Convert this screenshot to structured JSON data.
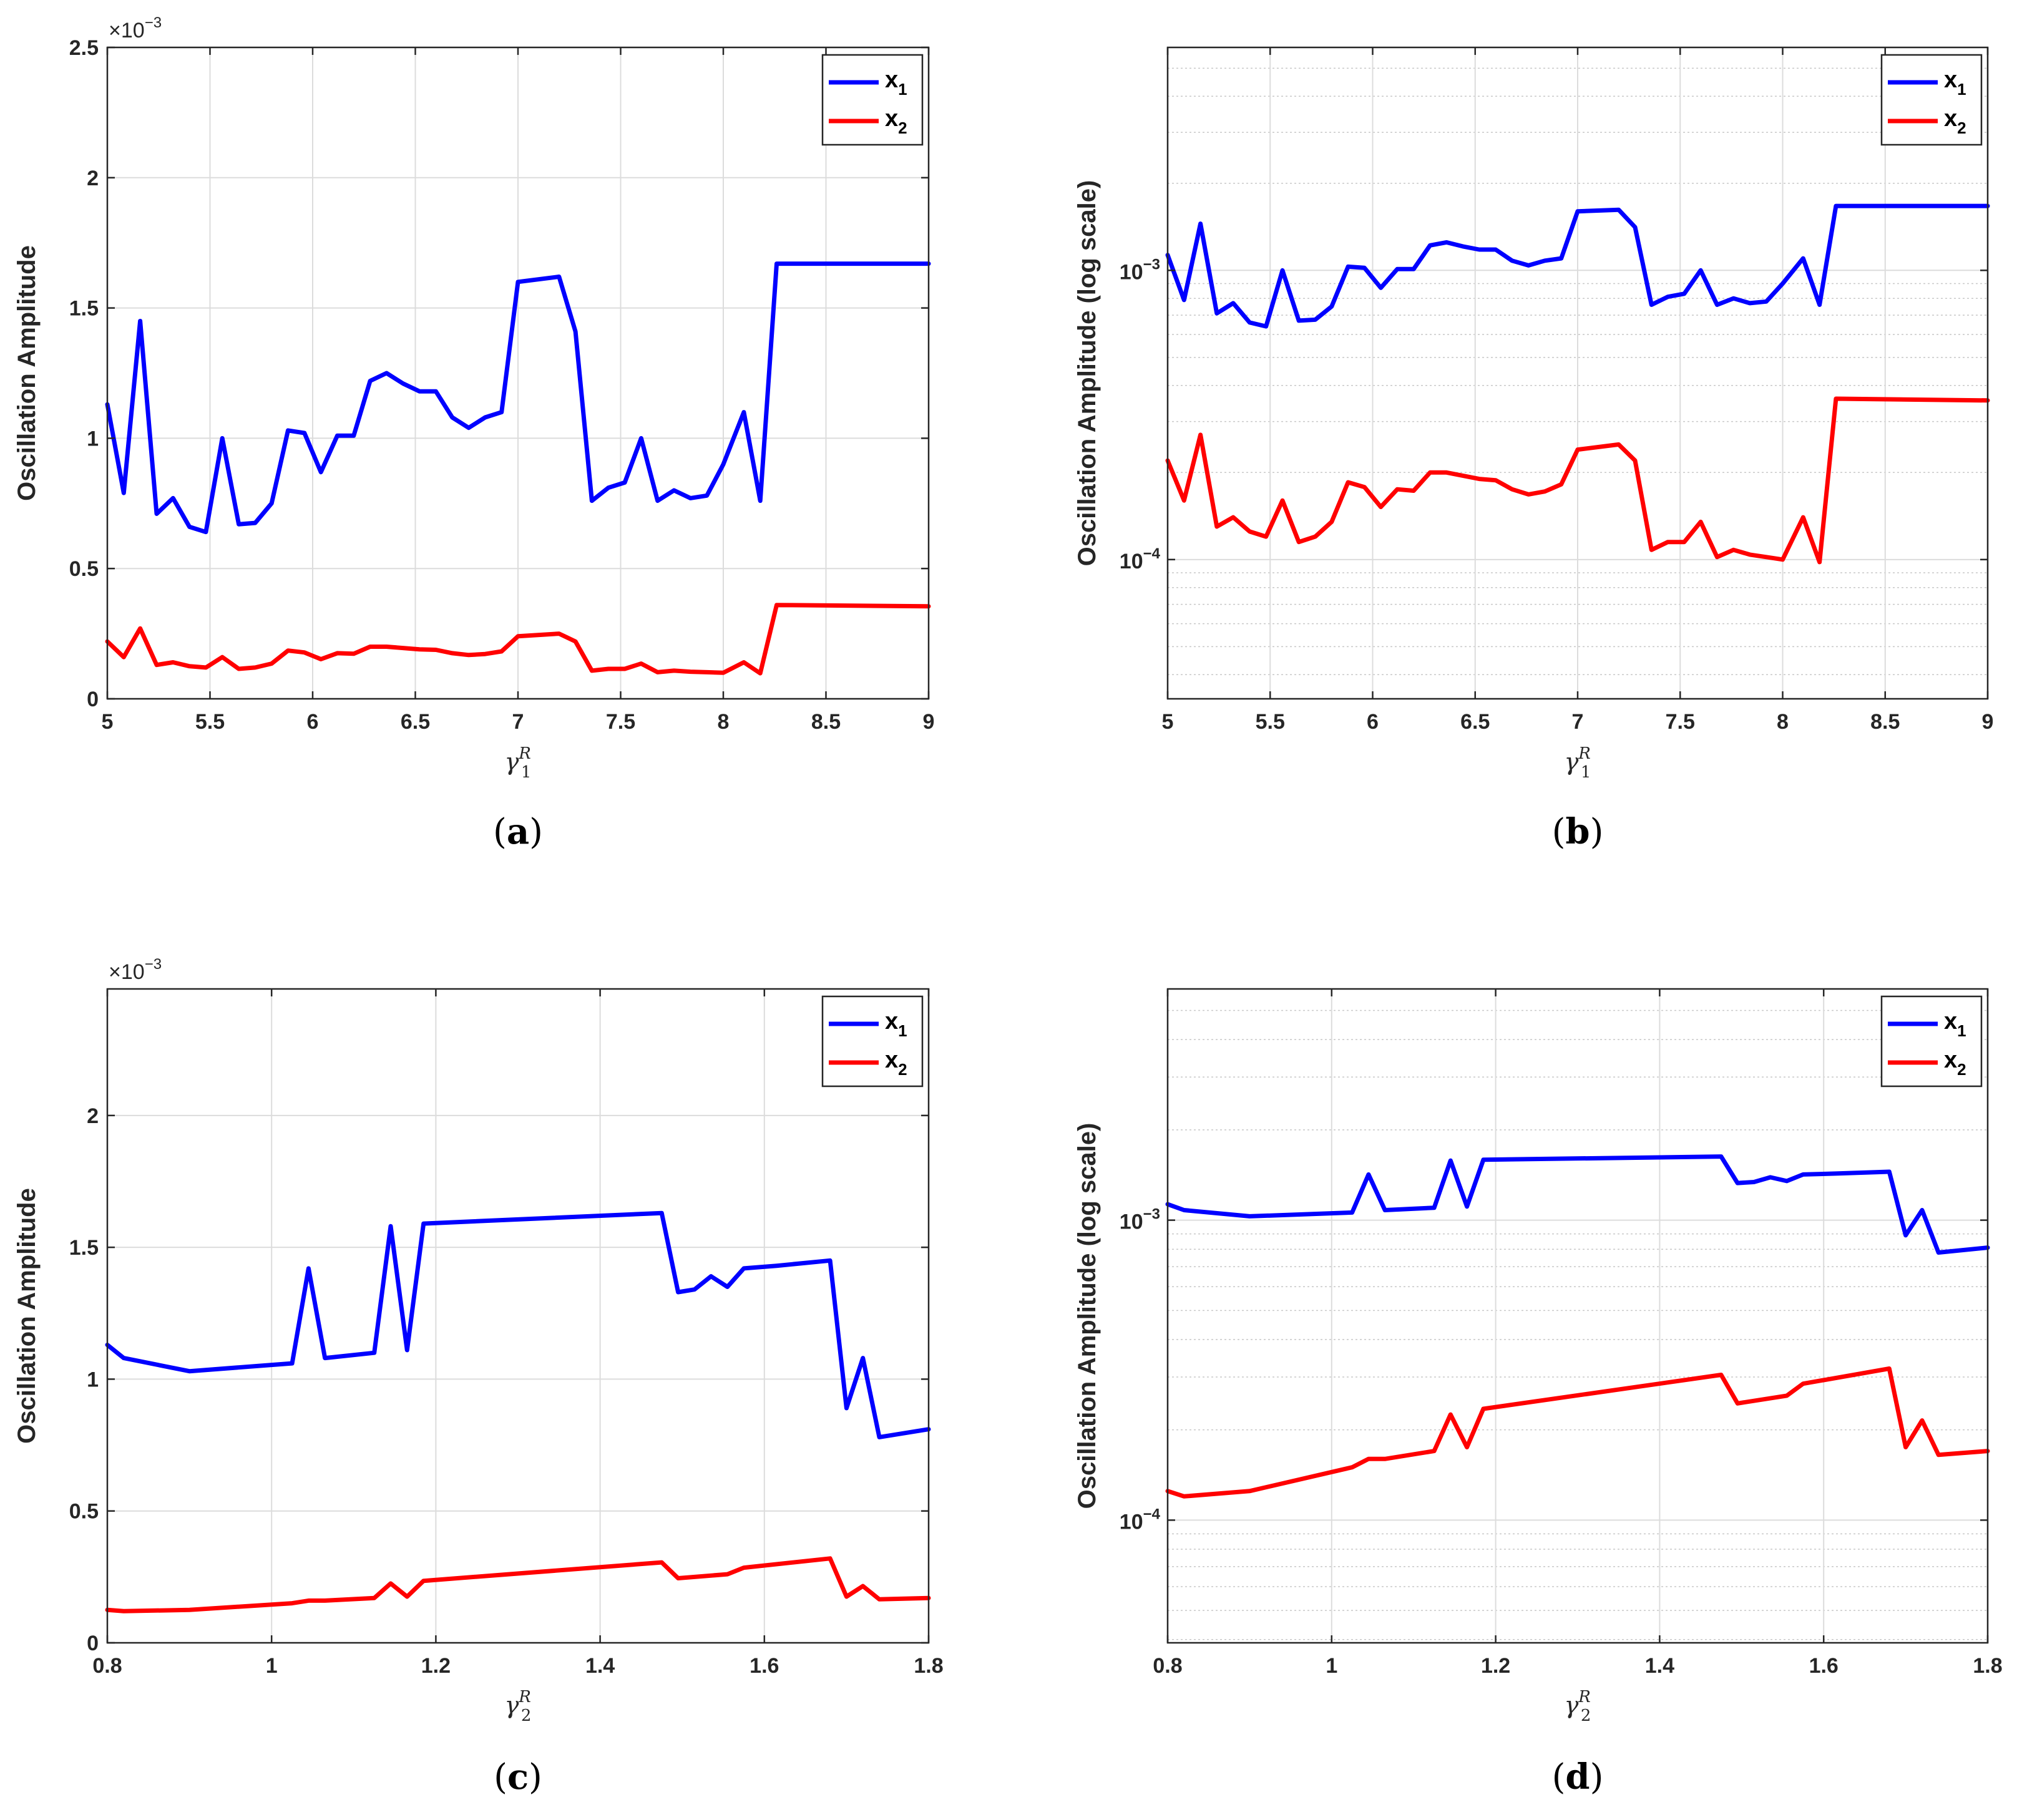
{
  "colors": {
    "x1": "#0000ff",
    "x2": "#ff0000"
  },
  "chart_data": [
    {
      "panel": "(a)",
      "panel_letter": "a",
      "type": "line",
      "xlabel": "γ",
      "xlabel_sub": "1",
      "xlabel_sup": "R",
      "ylabel": "Oscillation Amplitude",
      "yscale": "linear",
      "xlim": [
        5,
        9
      ],
      "ylim": [
        0,
        0.0025
      ],
      "xticks": [
        5,
        5.5,
        6,
        6.5,
        7,
        7.5,
        8,
        8.5,
        9
      ],
      "xtick_labels": [
        "5",
        "5.5",
        "6",
        "6.5",
        "7",
        "7.5",
        "8",
        "8.5",
        "9"
      ],
      "yticks": [
        0,
        0.0005,
        0.001,
        0.0015,
        0.002,
        0.0025
      ],
      "ytick_labels": [
        "0",
        "0.5",
        "1",
        "1.5",
        "2",
        "2.5"
      ],
      "exponent_label": "×10",
      "exponent_power": "−3",
      "legend": [
        "x",
        "x"
      ],
      "legend_subs": [
        "1",
        "2"
      ],
      "grid": true,
      "series": [
        {
          "name": "x1",
          "x": [
            5.0,
            5.08,
            5.16,
            5.24,
            5.32,
            5.4,
            5.48,
            5.56,
            5.64,
            5.72,
            5.8,
            5.88,
            5.96,
            6.04,
            6.12,
            6.2,
            6.28,
            6.36,
            6.44,
            6.52,
            6.6,
            6.68,
            6.76,
            6.84,
            6.92,
            7.0,
            7.2,
            7.28,
            7.36,
            7.44,
            7.52,
            7.6,
            7.68,
            7.76,
            7.84,
            7.92,
            8.0,
            8.1,
            8.18,
            8.26,
            9.0
          ],
          "y": [
            0.00113,
            0.00079,
            0.00145,
            0.00071,
            0.00077,
            0.00066,
            0.00064,
            0.001,
            0.00067,
            0.000675,
            0.00075,
            0.00103,
            0.00102,
            0.00087,
            0.00101,
            0.00101,
            0.00122,
            0.00125,
            0.00121,
            0.00118,
            0.00118,
            0.00108,
            0.00104,
            0.00108,
            0.0011,
            0.0016,
            0.00162,
            0.00141,
            0.00076,
            0.00081,
            0.00083,
            0.001,
            0.00076,
            0.0008,
            0.00077,
            0.00078,
            0.0009,
            0.0011,
            0.00076,
            0.00167,
            0.00167
          ]
        },
        {
          "name": "x2",
          "x": [
            5.0,
            5.08,
            5.16,
            5.24,
            5.32,
            5.4,
            5.48,
            5.56,
            5.64,
            5.72,
            5.8,
            5.88,
            5.96,
            6.04,
            6.12,
            6.2,
            6.28,
            6.36,
            6.44,
            6.52,
            6.6,
            6.68,
            6.76,
            6.84,
            6.92,
            7.0,
            7.2,
            7.28,
            7.36,
            7.44,
            7.52,
            7.6,
            7.68,
            7.76,
            7.84,
            7.92,
            8.0,
            8.1,
            8.18,
            8.26,
            9.0
          ],
          "y": [
            0.00022,
            0.00016,
            0.00027,
            0.00013,
            0.00014,
            0.000125,
            0.00012,
            0.00016,
            0.000115,
            0.00012,
            0.000135,
            0.000185,
            0.000178,
            0.000152,
            0.000175,
            0.000173,
            0.0002,
            0.0002,
            0.000195,
            0.00019,
            0.000188,
            0.000175,
            0.000168,
            0.000172,
            0.000182,
            0.00024,
            0.00025,
            0.00022,
            0.000108,
            0.000115,
            0.000115,
            0.000135,
            0.000102,
            0.000108,
            0.000104,
            0.000102,
            0.0001,
            0.00014,
            9.8e-05,
            0.00036,
            0.000355
          ]
        }
      ]
    },
    {
      "panel": "(b)",
      "panel_letter": "b",
      "type": "line",
      "xlabel": "γ",
      "xlabel_sub": "1",
      "xlabel_sup": "R",
      "ylabel": "Oscillation Amplitude (log scale)",
      "yscale": "log",
      "xlim": [
        5,
        9
      ],
      "ylim": [
        3.3e-05,
        0.0059
      ],
      "xticks": [
        5,
        5.5,
        6,
        6.5,
        7,
        7.5,
        8,
        8.5,
        9
      ],
      "xtick_labels": [
        "5",
        "5.5",
        "6",
        "6.5",
        "7",
        "7.5",
        "8",
        "8.5",
        "9"
      ],
      "yticks": [
        0.0001,
        0.001
      ],
      "ytick_base": "10",
      "ytick_powers": [
        "−4",
        "−3"
      ],
      "legend": [
        "x",
        "x"
      ],
      "legend_subs": [
        "1",
        "2"
      ],
      "grid": true,
      "series": [
        {
          "name": "x1",
          "x": [
            5.0,
            5.08,
            5.16,
            5.24,
            5.32,
            5.4,
            5.48,
            5.56,
            5.64,
            5.72,
            5.8,
            5.88,
            5.96,
            6.04,
            6.12,
            6.2,
            6.28,
            6.36,
            6.44,
            6.52,
            6.6,
            6.68,
            6.76,
            6.84,
            6.92,
            7.0,
            7.2,
            7.28,
            7.36,
            7.44,
            7.52,
            7.6,
            7.68,
            7.76,
            7.84,
            7.92,
            8.0,
            8.1,
            8.18,
            8.26,
            9.0
          ],
          "y": [
            0.00113,
            0.00079,
            0.00145,
            0.00071,
            0.00077,
            0.00066,
            0.00064,
            0.001,
            0.00067,
            0.000675,
            0.00075,
            0.00103,
            0.00102,
            0.00087,
            0.00101,
            0.00101,
            0.00122,
            0.00125,
            0.00121,
            0.00118,
            0.00118,
            0.00108,
            0.00104,
            0.00108,
            0.0011,
            0.0016,
            0.00162,
            0.00141,
            0.00076,
            0.00081,
            0.00083,
            0.001,
            0.00076,
            0.0008,
            0.00077,
            0.00078,
            0.0009,
            0.0011,
            0.00076,
            0.00167,
            0.00167
          ]
        },
        {
          "name": "x2",
          "x": [
            5.0,
            5.08,
            5.16,
            5.24,
            5.32,
            5.4,
            5.48,
            5.56,
            5.64,
            5.72,
            5.8,
            5.88,
            5.96,
            6.04,
            6.12,
            6.2,
            6.28,
            6.36,
            6.44,
            6.52,
            6.6,
            6.68,
            6.76,
            6.84,
            6.92,
            7.0,
            7.2,
            7.28,
            7.36,
            7.44,
            7.52,
            7.6,
            7.68,
            7.76,
            7.84,
            7.92,
            8.0,
            8.1,
            8.18,
            8.26,
            9.0
          ],
          "y": [
            0.00022,
            0.00016,
            0.00027,
            0.00013,
            0.00014,
            0.000125,
            0.00012,
            0.00016,
            0.000115,
            0.00012,
            0.000135,
            0.000185,
            0.000178,
            0.000152,
            0.000175,
            0.000173,
            0.0002,
            0.0002,
            0.000195,
            0.00019,
            0.000188,
            0.000175,
            0.000168,
            0.000172,
            0.000182,
            0.00024,
            0.00025,
            0.00022,
            0.000108,
            0.000115,
            0.000115,
            0.000135,
            0.000102,
            0.000108,
            0.000104,
            0.000102,
            0.0001,
            0.00014,
            9.8e-05,
            0.00036,
            0.000355
          ]
        }
      ]
    },
    {
      "panel": "(c)",
      "panel_letter": "c",
      "type": "line",
      "xlabel": "γ",
      "xlabel_sub": "2",
      "xlabel_sup": "R",
      "ylabel": "Oscillation Amplitude",
      "yscale": "linear",
      "xlim": [
        0.8,
        1.8
      ],
      "ylim": [
        0,
        0.00248
      ],
      "xticks": [
        0.8,
        1.0,
        1.2,
        1.4,
        1.6,
        1.8
      ],
      "xtick_labels": [
        "0.8",
        "1",
        "1.2",
        "1.4",
        "1.6",
        "1.8"
      ],
      "yticks": [
        0,
        0.0005,
        0.001,
        0.0015,
        0.002
      ],
      "ytick_labels": [
        "0",
        "0.5",
        "1",
        "1.5",
        "2"
      ],
      "exponent_label": "×10",
      "exponent_power": "−3",
      "legend": [
        "x",
        "x"
      ],
      "legend_subs": [
        "1",
        "2"
      ],
      "grid": true,
      "series": [
        {
          "name": "x1",
          "x": [
            0.8,
            0.82,
            0.9,
            1.025,
            1.045,
            1.065,
            1.125,
            1.145,
            1.165,
            1.185,
            1.475,
            1.495,
            1.515,
            1.535,
            1.555,
            1.575,
            1.615,
            1.68,
            1.7,
            1.72,
            1.74,
            1.8
          ],
          "y": [
            0.00113,
            0.00108,
            0.00103,
            0.00106,
            0.00142,
            0.00108,
            0.0011,
            0.00158,
            0.00111,
            0.00159,
            0.00163,
            0.00133,
            0.00134,
            0.00139,
            0.00135,
            0.00142,
            0.00143,
            0.00145,
            0.00089,
            0.00108,
            0.00078,
            0.00081
          ]
        },
        {
          "name": "x2",
          "x": [
            0.8,
            0.82,
            0.9,
            1.025,
            1.045,
            1.065,
            1.125,
            1.145,
            1.165,
            1.185,
            1.475,
            1.495,
            1.555,
            1.575,
            1.68,
            1.7,
            1.72,
            1.74,
            1.8
          ],
          "y": [
            0.000125,
            0.00012,
            0.000125,
            0.00015,
            0.00016,
            0.00016,
            0.00017,
            0.000225,
            0.000175,
            0.000235,
            0.000305,
            0.000245,
            0.00026,
            0.000285,
            0.00032,
            0.000175,
            0.000215,
            0.000165,
            0.00017
          ]
        }
      ]
    },
    {
      "panel": "(d)",
      "panel_letter": "d",
      "type": "line",
      "xlabel": "γ",
      "xlabel_sub": "2",
      "xlabel_sup": "R",
      "ylabel": "Oscillation Amplitude (log scale)",
      "yscale": "log",
      "xlim": [
        0.8,
        1.8
      ],
      "ylim": [
        3.9e-05,
        0.0059
      ],
      "xticks": [
        0.8,
        1.0,
        1.2,
        1.4,
        1.6,
        1.8
      ],
      "xtick_labels": [
        "0.8",
        "1",
        "1.2",
        "1.4",
        "1.6",
        "1.8"
      ],
      "yticks": [
        0.0001,
        0.001
      ],
      "ytick_base": "10",
      "ytick_powers": [
        "−4",
        "−3"
      ],
      "legend": [
        "x",
        "x"
      ],
      "legend_subs": [
        "1",
        "2"
      ],
      "grid": true,
      "series": [
        {
          "name": "x1",
          "x": [
            0.8,
            0.82,
            0.9,
            1.025,
            1.045,
            1.065,
            1.125,
            1.145,
            1.165,
            1.185,
            1.475,
            1.495,
            1.515,
            1.535,
            1.555,
            1.575,
            1.615,
            1.68,
            1.7,
            1.72,
            1.74,
            1.8
          ],
          "y": [
            0.00113,
            0.00108,
            0.00103,
            0.00106,
            0.00142,
            0.00108,
            0.0011,
            0.00158,
            0.00111,
            0.00159,
            0.00163,
            0.00133,
            0.00134,
            0.00139,
            0.00135,
            0.00142,
            0.00143,
            0.00145,
            0.00089,
            0.00108,
            0.00078,
            0.00081
          ]
        },
        {
          "name": "x2",
          "x": [
            0.8,
            0.82,
            0.9,
            1.025,
            1.045,
            1.065,
            1.125,
            1.145,
            1.165,
            1.185,
            1.475,
            1.495,
            1.555,
            1.575,
            1.68,
            1.7,
            1.72,
            1.74,
            1.8
          ],
          "y": [
            0.000125,
            0.00012,
            0.000125,
            0.00015,
            0.00016,
            0.00016,
            0.00017,
            0.000225,
            0.000175,
            0.000235,
            0.000305,
            0.000245,
            0.00026,
            0.000285,
            0.00032,
            0.000175,
            0.000215,
            0.000165,
            0.00017
          ]
        }
      ]
    }
  ]
}
